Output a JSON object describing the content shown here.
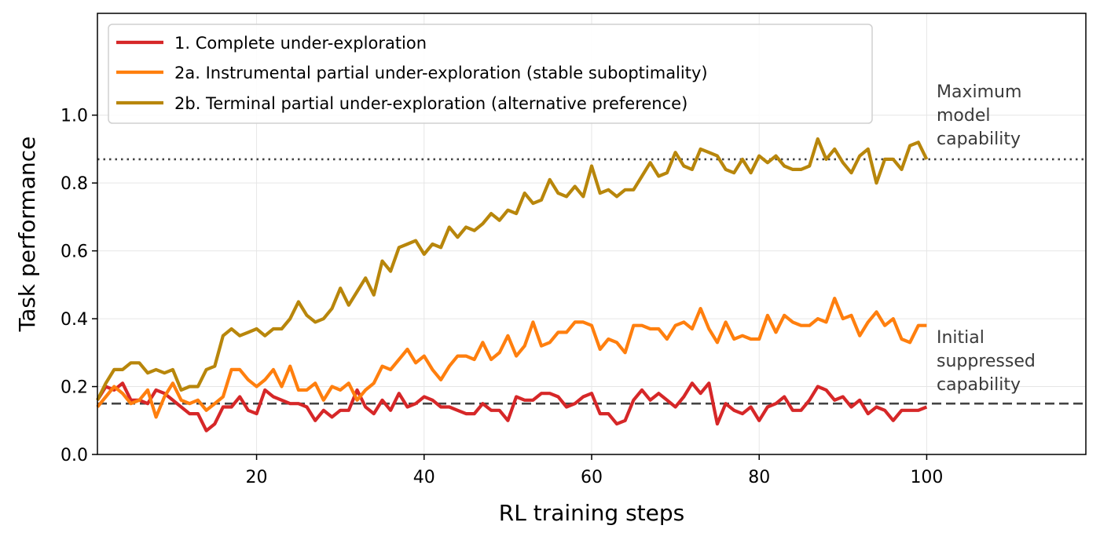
{
  "chart_data": {
    "type": "line",
    "title": "",
    "xlabel": "RL training steps",
    "ylabel": "Task performance",
    "xlim": [
      1,
      119
    ],
    "ylim": [
      0,
      1.3
    ],
    "xticks": [
      20,
      40,
      60,
      80,
      100
    ],
    "yticks": [
      0.0,
      0.2,
      0.4,
      0.6,
      0.8,
      1.0
    ],
    "xtick_labels": [
      "20",
      "40",
      "60",
      "80",
      "100"
    ],
    "ytick_labels": [
      "0.0",
      "0.2",
      "0.4",
      "0.6",
      "0.8",
      "1.0"
    ],
    "grid": true,
    "legend_position": "top-left",
    "x": [
      1,
      2,
      3,
      4,
      5,
      6,
      7,
      8,
      9,
      10,
      11,
      12,
      13,
      14,
      15,
      16,
      17,
      18,
      19,
      20,
      21,
      22,
      23,
      24,
      25,
      26,
      27,
      28,
      29,
      30,
      31,
      32,
      33,
      34,
      35,
      36,
      37,
      38,
      39,
      40,
      41,
      42,
      43,
      44,
      45,
      46,
      47,
      48,
      49,
      50,
      51,
      52,
      53,
      54,
      55,
      56,
      57,
      58,
      59,
      60,
      61,
      62,
      63,
      64,
      65,
      66,
      67,
      68,
      69,
      70,
      71,
      72,
      73,
      74,
      75,
      76,
      77,
      78,
      79,
      80,
      81,
      82,
      83,
      84,
      85,
      86,
      87,
      88,
      89,
      90,
      91,
      92,
      93,
      94,
      95,
      96,
      97,
      98,
      99,
      100
    ],
    "series": [
      {
        "name": "1. Complete under-exploration",
        "color": "#d62728",
        "values": [
          0.16,
          0.2,
          0.19,
          0.21,
          0.16,
          0.16,
          0.15,
          0.19,
          0.18,
          0.16,
          0.14,
          0.12,
          0.12,
          0.07,
          0.09,
          0.14,
          0.14,
          0.17,
          0.13,
          0.12,
          0.19,
          0.17,
          0.16,
          0.15,
          0.15,
          0.14,
          0.1,
          0.13,
          0.11,
          0.13,
          0.13,
          0.19,
          0.14,
          0.12,
          0.16,
          0.13,
          0.18,
          0.14,
          0.15,
          0.17,
          0.16,
          0.14,
          0.14,
          0.13,
          0.12,
          0.12,
          0.15,
          0.13,
          0.13,
          0.1,
          0.17,
          0.16,
          0.16,
          0.18,
          0.18,
          0.17,
          0.14,
          0.15,
          0.17,
          0.18,
          0.12,
          0.12,
          0.09,
          0.1,
          0.16,
          0.19,
          0.16,
          0.18,
          0.16,
          0.14,
          0.17,
          0.21,
          0.18,
          0.21,
          0.09,
          0.15,
          0.13,
          0.12,
          0.14,
          0.1,
          0.14,
          0.15,
          0.17,
          0.13,
          0.13,
          0.16,
          0.2,
          0.19,
          0.16,
          0.17,
          0.14,
          0.16,
          0.12,
          0.14,
          0.13,
          0.1,
          0.13,
          0.13,
          0.13,
          0.14
        ]
      },
      {
        "name": "2a. Instrumental partial under-exploration (stable suboptimality)",
        "color": "#ff7f0e",
        "values": [
          0.14,
          0.17,
          0.2,
          0.18,
          0.15,
          0.16,
          0.19,
          0.11,
          0.17,
          0.21,
          0.16,
          0.15,
          0.16,
          0.13,
          0.15,
          0.17,
          0.25,
          0.25,
          0.22,
          0.2,
          0.22,
          0.25,
          0.2,
          0.26,
          0.19,
          0.19,
          0.21,
          0.16,
          0.2,
          0.19,
          0.21,
          0.16,
          0.19,
          0.21,
          0.26,
          0.25,
          0.28,
          0.31,
          0.27,
          0.29,
          0.25,
          0.22,
          0.26,
          0.29,
          0.29,
          0.28,
          0.33,
          0.28,
          0.3,
          0.35,
          0.29,
          0.32,
          0.39,
          0.32,
          0.33,
          0.36,
          0.36,
          0.39,
          0.39,
          0.38,
          0.31,
          0.34,
          0.33,
          0.3,
          0.38,
          0.38,
          0.37,
          0.37,
          0.34,
          0.38,
          0.39,
          0.37,
          0.43,
          0.37,
          0.33,
          0.39,
          0.34,
          0.35,
          0.34,
          0.34,
          0.41,
          0.36,
          0.41,
          0.39,
          0.38,
          0.38,
          0.4,
          0.39,
          0.46,
          0.4,
          0.41,
          0.35,
          0.39,
          0.42,
          0.38,
          0.4,
          0.34,
          0.33,
          0.38,
          0.38
        ]
      },
      {
        "name": "2b. Terminal partial under-exploration (alternative preference)",
        "color": "#b8860b",
        "values": [
          0.16,
          0.21,
          0.25,
          0.25,
          0.27,
          0.27,
          0.24,
          0.25,
          0.24,
          0.25,
          0.19,
          0.2,
          0.2,
          0.25,
          0.26,
          0.35,
          0.37,
          0.35,
          0.36,
          0.37,
          0.35,
          0.37,
          0.37,
          0.4,
          0.45,
          0.41,
          0.39,
          0.4,
          0.43,
          0.49,
          0.44,
          0.48,
          0.52,
          0.47,
          0.57,
          0.54,
          0.61,
          0.62,
          0.63,
          0.59,
          0.62,
          0.61,
          0.67,
          0.64,
          0.67,
          0.66,
          0.68,
          0.71,
          0.69,
          0.72,
          0.71,
          0.77,
          0.74,
          0.75,
          0.81,
          0.77,
          0.76,
          0.79,
          0.76,
          0.85,
          0.77,
          0.78,
          0.76,
          0.78,
          0.78,
          0.82,
          0.86,
          0.82,
          0.83,
          0.89,
          0.85,
          0.84,
          0.9,
          0.89,
          0.88,
          0.84,
          0.83,
          0.87,
          0.83,
          0.88,
          0.86,
          0.88,
          0.85,
          0.84,
          0.84,
          0.85,
          0.93,
          0.87,
          0.9,
          0.86,
          0.83,
          0.88,
          0.9,
          0.8,
          0.87,
          0.87,
          0.84,
          0.91,
          0.92,
          0.87
        ]
      }
    ],
    "reference_lines": [
      {
        "y": 0.87,
        "style": "dotted",
        "color": "#444444",
        "label": "Maximum model capability",
        "label_lines": [
          "Maximum",
          "model",
          "capability"
        ]
      },
      {
        "y": 0.15,
        "style": "dashed",
        "color": "#444444",
        "label": "Initial suppressed capability",
        "label_lines": [
          "Initial",
          "suppressed",
          "capability"
        ]
      }
    ]
  }
}
